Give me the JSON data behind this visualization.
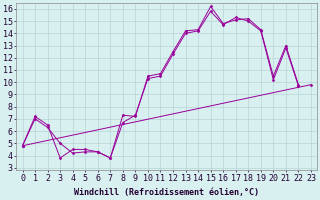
{
  "xlabel": "Windchill (Refroidissement éolien,°C)",
  "bg_color": "#d8f0f0",
  "grid_color": "#b8d4d4",
  "line_color": "#990099",
  "xlim": [
    -0.5,
    23.5
  ],
  "ylim": [
    2.8,
    16.5
  ],
  "xticks": [
    0,
    1,
    2,
    3,
    4,
    5,
    6,
    7,
    8,
    9,
    10,
    11,
    12,
    13,
    14,
    15,
    16,
    17,
    18,
    19,
    20,
    21,
    22,
    23
  ],
  "yticks": [
    3,
    4,
    5,
    6,
    7,
    8,
    9,
    10,
    11,
    12,
    13,
    14,
    15,
    16
  ],
  "series1_x": [
    0,
    1,
    2,
    3,
    4,
    5,
    6,
    7,
    8,
    9,
    10,
    11,
    12,
    13,
    14,
    15,
    16,
    17,
    18,
    19,
    20,
    21,
    22
  ],
  "series1_y": [
    4.8,
    7.0,
    6.3,
    5.0,
    4.2,
    4.3,
    4.3,
    3.8,
    7.3,
    7.2,
    10.5,
    10.7,
    12.5,
    14.2,
    14.3,
    16.2,
    14.8,
    15.1,
    15.2,
    14.3,
    10.5,
    13.0,
    9.8
  ],
  "series2_x": [
    0,
    1,
    2,
    3,
    4,
    5,
    6,
    7,
    8,
    9,
    10,
    11,
    12,
    13,
    14,
    15,
    16,
    17,
    18,
    19,
    20,
    21,
    22
  ],
  "series2_y": [
    4.8,
    7.2,
    6.5,
    3.8,
    4.5,
    4.5,
    4.3,
    3.8,
    6.7,
    7.3,
    10.3,
    10.5,
    12.3,
    14.0,
    14.2,
    15.8,
    14.7,
    15.3,
    15.0,
    14.2,
    10.2,
    12.8,
    9.7
  ],
  "series3_x": [
    0,
    23
  ],
  "series3_y": [
    4.8,
    9.8
  ],
  "font_size": 6,
  "marker": "D",
  "marker_size": 1.5,
  "linewidth": 0.7
}
